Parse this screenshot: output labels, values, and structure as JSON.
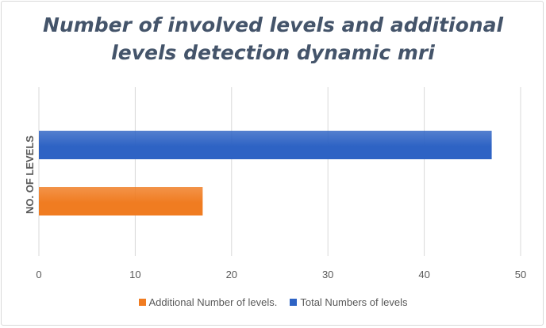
{
  "chart_data": {
    "type": "bar",
    "orientation": "horizontal",
    "title_lines": [
      "Number of involved levels and additional",
      "levels detection dynamic mri"
    ],
    "category_axis_label": "NO. OF LEVELS",
    "categories": [
      "NO. OF LEVELS"
    ],
    "series": [
      {
        "name": "Total Numbers of levels",
        "values": [
          47
        ],
        "color": "#2e63c4"
      },
      {
        "name": "Additional  Number of  levels.",
        "values": [
          17
        ],
        "color": "#f07c21"
      }
    ],
    "xlim": [
      0,
      50
    ],
    "x_ticks": [
      0,
      10,
      20,
      30,
      40,
      50
    ],
    "grid": true,
    "legend_position": "bottom",
    "legend_order": [
      "Additional  Number of  levels.",
      "Total Numbers of levels"
    ]
  },
  "colors": {
    "title": "#44546a",
    "gridline": "#d9d9d9",
    "axis_text": "#595959"
  }
}
